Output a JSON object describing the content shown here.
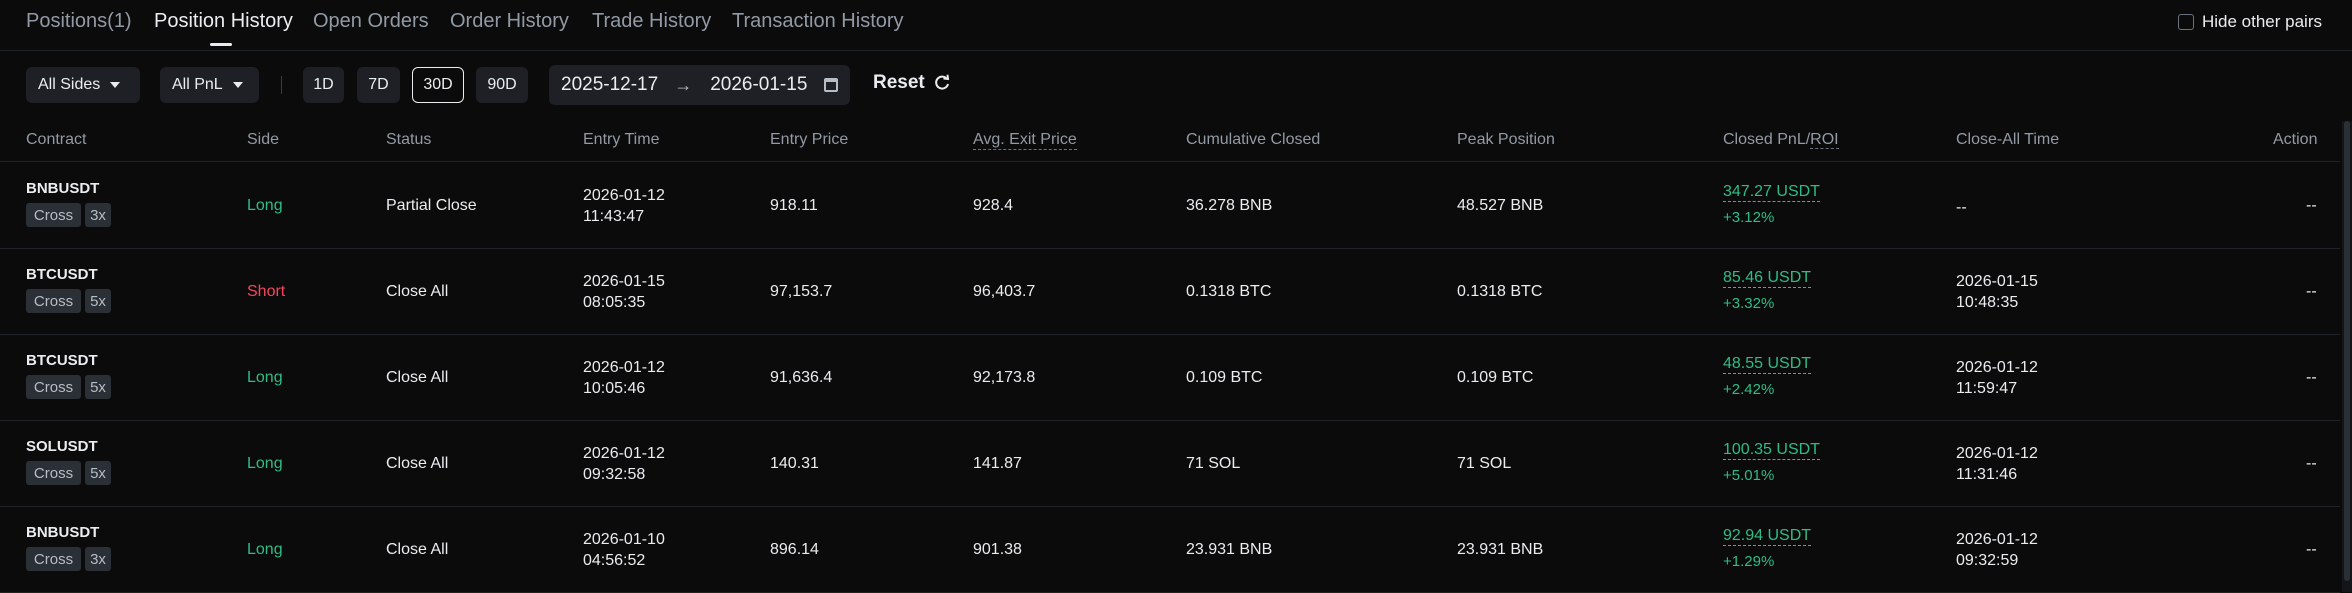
{
  "tabs": [
    {
      "label": "Positions(1)"
    },
    {
      "label": "Position History"
    },
    {
      "label": "Open Orders"
    },
    {
      "label": "Order History"
    },
    {
      "label": "Trade History"
    },
    {
      "label": "Transaction History"
    }
  ],
  "hide_other_pairs": "Hide other pairs",
  "filters": {
    "sides": "All Sides",
    "pnl": "All PnL",
    "periods": [
      "1D",
      "7D",
      "30D",
      "90D"
    ],
    "active_period": "30D",
    "date_from": "2025-12-17",
    "date_to": "2026-01-15",
    "reset": "Reset"
  },
  "columns": {
    "contract": "Contract",
    "side": "Side",
    "status": "Status",
    "entry_time": "Entry Time",
    "entry_price": "Entry Price",
    "avg_exit_price": "Avg. Exit Price",
    "cumulative_closed": "Cumulative Closed",
    "peak_position": "Peak Position",
    "closed_pnl": "Closed PnL/",
    "roi": "ROI",
    "close_all_time": "Close-All Time",
    "action": "Action"
  },
  "rows": [
    {
      "symbol": "BNBUSDT",
      "margin": "Cross",
      "leverage": "3x",
      "side": "Long",
      "status": "Partial Close",
      "entry_date": "2026-01-12",
      "entry_clock": "11:43:47",
      "entry_price": "918.11",
      "exit_price": "928.4",
      "cum_closed": "36.278 BNB",
      "peak": "48.527 BNB",
      "pnl": "347.27 USDT",
      "roi": "+3.12%",
      "close_date": "--",
      "close_clock": "",
      "action": "--"
    },
    {
      "symbol": "BTCUSDT",
      "margin": "Cross",
      "leverage": "5x",
      "side": "Short",
      "status": "Close All",
      "entry_date": "2026-01-15",
      "entry_clock": "08:05:35",
      "entry_price": "97,153.7",
      "exit_price": "96,403.7",
      "cum_closed": "0.1318 BTC",
      "peak": "0.1318 BTC",
      "pnl": "85.46 USDT",
      "roi": "+3.32%",
      "close_date": "2026-01-15",
      "close_clock": "10:48:35",
      "action": "--"
    },
    {
      "symbol": "BTCUSDT",
      "margin": "Cross",
      "leverage": "5x",
      "side": "Long",
      "status": "Close All",
      "entry_date": "2026-01-12",
      "entry_clock": "10:05:46",
      "entry_price": "91,636.4",
      "exit_price": "92,173.8",
      "cum_closed": "0.109 BTC",
      "peak": "0.109 BTC",
      "pnl": "48.55 USDT",
      "roi": "+2.42%",
      "close_date": "2026-01-12",
      "close_clock": "11:59:47",
      "action": "--"
    },
    {
      "symbol": "SOLUSDT",
      "margin": "Cross",
      "leverage": "5x",
      "side": "Long",
      "status": "Close All",
      "entry_date": "2026-01-12",
      "entry_clock": "09:32:58",
      "entry_price": "140.31",
      "exit_price": "141.87",
      "cum_closed": "71 SOL",
      "peak": "71 SOL",
      "pnl": "100.35 USDT",
      "roi": "+5.01%",
      "close_date": "2026-01-12",
      "close_clock": "11:31:46",
      "action": "--"
    },
    {
      "symbol": "BNBUSDT",
      "margin": "Cross",
      "leverage": "3x",
      "side": "Long",
      "status": "Close All",
      "entry_date": "2026-01-10",
      "entry_clock": "04:56:52",
      "entry_price": "896.14",
      "exit_price": "901.38",
      "cum_closed": "23.931 BNB",
      "peak": "23.931 BNB",
      "pnl": "92.94 USDT",
      "roi": "+1.29%",
      "close_date": "2026-01-12",
      "close_clock": "09:32:59",
      "action": "--"
    }
  ],
  "colors": {
    "long": "#2ebd85",
    "short": "#f6465d",
    "background": "#0b0b0b"
  },
  "icons": {
    "calendar": "calendar-icon",
    "reset": "refresh-icon",
    "arrow": "arrow-right-icon",
    "caret": "chevron-down-icon"
  }
}
